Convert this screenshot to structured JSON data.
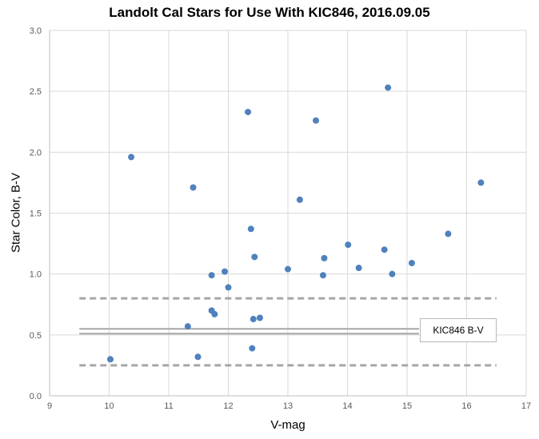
{
  "chart_data": {
    "type": "scatter",
    "title": "Landolt Cal Stars for Use With KIC846, 2016.09.05",
    "xlabel": "V-mag",
    "ylabel": "Star Color, B-V",
    "xlim": [
      9,
      17
    ],
    "ylim": [
      0.0,
      3.0
    ],
    "x_ticks": [
      "9",
      "10",
      "11",
      "12",
      "13",
      "14",
      "15",
      "16",
      "17"
    ],
    "y_ticks": [
      "0.0",
      "0.5",
      "1.0",
      "1.5",
      "2.0",
      "2.5",
      "3.0"
    ],
    "grid": true,
    "series": [
      {
        "color": "#4f81bd",
        "points": [
          {
            "x": 10.02,
            "y": 0.3
          },
          {
            "x": 10.37,
            "y": 1.96
          },
          {
            "x": 11.32,
            "y": 0.57
          },
          {
            "x": 11.41,
            "y": 1.71
          },
          {
            "x": 11.49,
            "y": 0.32
          },
          {
            "x": 11.72,
            "y": 0.99
          },
          {
            "x": 11.72,
            "y": 0.7
          },
          {
            "x": 11.77,
            "y": 0.67
          },
          {
            "x": 11.94,
            "y": 1.02
          },
          {
            "x": 12.0,
            "y": 0.89
          },
          {
            "x": 12.33,
            "y": 2.33
          },
          {
            "x": 12.38,
            "y": 1.37
          },
          {
            "x": 12.4,
            "y": 0.39
          },
          {
            "x": 12.42,
            "y": 0.63
          },
          {
            "x": 12.44,
            "y": 1.14
          },
          {
            "x": 12.53,
            "y": 0.64
          },
          {
            "x": 13.0,
            "y": 1.04
          },
          {
            "x": 13.2,
            "y": 1.61
          },
          {
            "x": 13.47,
            "y": 2.26
          },
          {
            "x": 13.59,
            "y": 0.99
          },
          {
            "x": 13.61,
            "y": 1.13
          },
          {
            "x": 14.01,
            "y": 1.24
          },
          {
            "x": 14.19,
            "y": 1.05
          },
          {
            "x": 14.62,
            "y": 1.2
          },
          {
            "x": 14.68,
            "y": 2.53
          },
          {
            "x": 14.75,
            "y": 1.0
          },
          {
            "x": 15.08,
            "y": 1.09
          },
          {
            "x": 15.69,
            "y": 1.33
          },
          {
            "x": 16.24,
            "y": 1.75
          }
        ]
      }
    ],
    "reference_lines": [
      {
        "y": 0.8,
        "x_range": [
          9.5,
          16.5
        ],
        "style": "dashed",
        "color": "#a6a6a6"
      },
      {
        "y": 0.55,
        "x_range": [
          9.5,
          15.2
        ],
        "style": "solid",
        "color": "#a6a6a6"
      },
      {
        "y": 0.51,
        "x_range": [
          9.5,
          15.2
        ],
        "style": "solid",
        "color": "#a6a6a6"
      },
      {
        "y": 0.25,
        "x_range": [
          9.5,
          16.5
        ],
        "style": "dashed",
        "color": "#a6a6a6"
      }
    ],
    "annotations": [
      {
        "text": "KIC846 B-V"
      }
    ]
  }
}
